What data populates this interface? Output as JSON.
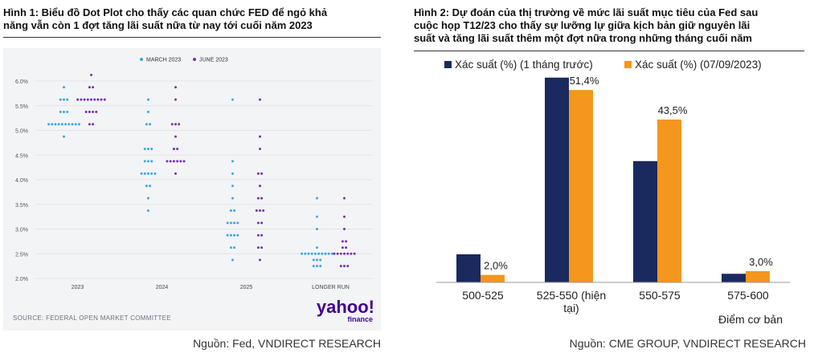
{
  "left": {
    "title_line1": "Hình 1: Biểu đồ Dot Plot cho thấy các quan chức FED để ngỏ khả",
    "title_line2": "năng vẫn còn 1 đợt tăng lãi suất nữa từ nay tới cuối năm 2023",
    "source": "Nguồn: Fed, VNDIRECT RESEARCH",
    "inner_source": "SOURCE: FEDERAL OPEN MARKET COMMITTEE",
    "logo_text": "yahoo!",
    "logo_sub": "finance"
  },
  "right": {
    "title_line1": "Hình 2: Dự đoán của thị trường về mức lãi suất mục tiêu của Fed sau",
    "title_line2": "cuộc họp T12/23 cho thấy sự lưỡng lự giữa kịch bản giữ nguyên lãi",
    "title_line3": "suất và tăng lãi suất thêm một đợt nữa trong những tháng cuối năm",
    "source": "Nguồn: CME GROUP, VNDIRECT RESEARCH"
  },
  "chart_data": [
    {
      "type": "scatter",
      "subtype": "dot-plot",
      "categories": [
        "2023",
        "2024",
        "2025",
        "LONGER RUN"
      ],
      "ylim": [
        2.0,
        6.0
      ],
      "yticks": [
        "2.0%",
        "2.5%",
        "3.0%",
        "3.5%",
        "4.0%",
        "4.5%",
        "5.0%",
        "5.5%",
        "6.0%"
      ],
      "legend_position": "top-center",
      "grid": true,
      "series": [
        {
          "name": "MARCH 2023",
          "color": "#3aa7e6",
          "points": [
            {
              "x": "2023",
              "y": 5.875,
              "n": 1
            },
            {
              "x": "2023",
              "y": 5.625,
              "n": 3
            },
            {
              "x": "2023",
              "y": 5.375,
              "n": 3
            },
            {
              "x": "2023",
              "y": 5.125,
              "n": 10
            },
            {
              "x": "2023",
              "y": 4.875,
              "n": 1
            },
            {
              "x": "2024",
              "y": 5.625,
              "n": 1
            },
            {
              "x": "2024",
              "y": 5.375,
              "n": 1
            },
            {
              "x": "2024",
              "y": 5.125,
              "n": 2
            },
            {
              "x": "2024",
              "y": 4.625,
              "n": 3
            },
            {
              "x": "2024",
              "y": 4.375,
              "n": 3
            },
            {
              "x": "2024",
              "y": 4.125,
              "n": 5
            },
            {
              "x": "2024",
              "y": 3.875,
              "n": 2
            },
            {
              "x": "2024",
              "y": 3.625,
              "n": 1
            },
            {
              "x": "2024",
              "y": 3.375,
              "n": 1
            },
            {
              "x": "2025",
              "y": 5.625,
              "n": 1
            },
            {
              "x": "2025",
              "y": 4.375,
              "n": 1
            },
            {
              "x": "2025",
              "y": 4.125,
              "n": 1
            },
            {
              "x": "2025",
              "y": 3.875,
              "n": 1
            },
            {
              "x": "2025",
              "y": 3.625,
              "n": 1
            },
            {
              "x": "2025",
              "y": 3.375,
              "n": 2
            },
            {
              "x": "2025",
              "y": 3.125,
              "n": 4
            },
            {
              "x": "2025",
              "y": 2.875,
              "n": 4
            },
            {
              "x": "2025",
              "y": 2.625,
              "n": 2
            },
            {
              "x": "2025",
              "y": 2.375,
              "n": 1
            },
            {
              "x": "LONGER RUN",
              "y": 3.625,
              "n": 1
            },
            {
              "x": "LONGER RUN",
              "y": 3.25,
              "n": 1
            },
            {
              "x": "LONGER RUN",
              "y": 3.0,
              "n": 1
            },
            {
              "x": "LONGER RUN",
              "y": 2.625,
              "n": 1
            },
            {
              "x": "LONGER RUN",
              "y": 2.5,
              "n": 10
            },
            {
              "x": "LONGER RUN",
              "y": 2.375,
              "n": 3
            },
            {
              "x": "LONGER RUN",
              "y": 2.25,
              "n": 3
            }
          ]
        },
        {
          "name": "JUNE 2023",
          "color": "#7b2fb5",
          "points": [
            {
              "x": "2023",
              "y": 6.125,
              "n": 1
            },
            {
              "x": "2023",
              "y": 5.875,
              "n": 2
            },
            {
              "x": "2023",
              "y": 5.625,
              "n": 9
            },
            {
              "x": "2023",
              "y": 5.375,
              "n": 4
            },
            {
              "x": "2023",
              "y": 5.125,
              "n": 2
            },
            {
              "x": "2024",
              "y": 5.875,
              "n": 1
            },
            {
              "x": "2024",
              "y": 5.625,
              "n": 1
            },
            {
              "x": "2024",
              "y": 5.125,
              "n": 3
            },
            {
              "x": "2024",
              "y": 4.875,
              "n": 1
            },
            {
              "x": "2024",
              "y": 4.625,
              "n": 2
            },
            {
              "x": "2024",
              "y": 4.375,
              "n": 6
            },
            {
              "x": "2024",
              "y": 4.125,
              "n": 1
            },
            {
              "x": "2025",
              "y": 5.625,
              "n": 1
            },
            {
              "x": "2025",
              "y": 4.875,
              "n": 1
            },
            {
              "x": "2025",
              "y": 4.625,
              "n": 1
            },
            {
              "x": "2025",
              "y": 4.125,
              "n": 2
            },
            {
              "x": "2025",
              "y": 3.875,
              "n": 1
            },
            {
              "x": "2025",
              "y": 3.625,
              "n": 2
            },
            {
              "x": "2025",
              "y": 3.375,
              "n": 3
            },
            {
              "x": "2025",
              "y": 3.125,
              "n": 2
            },
            {
              "x": "2025",
              "y": 2.875,
              "n": 2
            },
            {
              "x": "2025",
              "y": 2.625,
              "n": 2
            },
            {
              "x": "2025",
              "y": 2.375,
              "n": 1
            },
            {
              "x": "LONGER RUN",
              "y": 3.625,
              "n": 1
            },
            {
              "x": "LONGER RUN",
              "y": 3.25,
              "n": 1
            },
            {
              "x": "LONGER RUN",
              "y": 3.0,
              "n": 1
            },
            {
              "x": "LONGER RUN",
              "y": 2.75,
              "n": 2
            },
            {
              "x": "LONGER RUN",
              "y": 2.625,
              "n": 2
            },
            {
              "x": "LONGER RUN",
              "y": 2.5,
              "n": 7
            },
            {
              "x": "LONGER RUN",
              "y": 2.25,
              "n": 3
            }
          ]
        }
      ]
    },
    {
      "type": "bar",
      "categories": [
        "500-525",
        "525-550 (hiện tại)",
        "550-575",
        "575-600"
      ],
      "category_label_lines": [
        [
          "500-525"
        ],
        [
          "525-550 (hiện",
          "tại)"
        ],
        [
          "550-575"
        ],
        [
          "575-600"
        ]
      ],
      "xlabel": "Điểm cơ bản",
      "ylim": [
        0,
        60
      ],
      "legend_position": "top",
      "series": [
        {
          "name": "Xác suất (%) (1 tháng trước)",
          "color": "#1a2a5e",
          "values": [
            7.5,
            54.7,
            32.4,
            2.3
          ],
          "labels": [
            "",
            "",
            "",
            ""
          ]
        },
        {
          "name": "Xác suất (%) (07/09/2023)",
          "color": "#f5961d",
          "values": [
            2.0,
            51.4,
            43.5,
            3.0
          ],
          "labels": [
            "2,0%",
            "51,4%",
            "43,5%",
            "3,0%"
          ]
        }
      ]
    }
  ]
}
